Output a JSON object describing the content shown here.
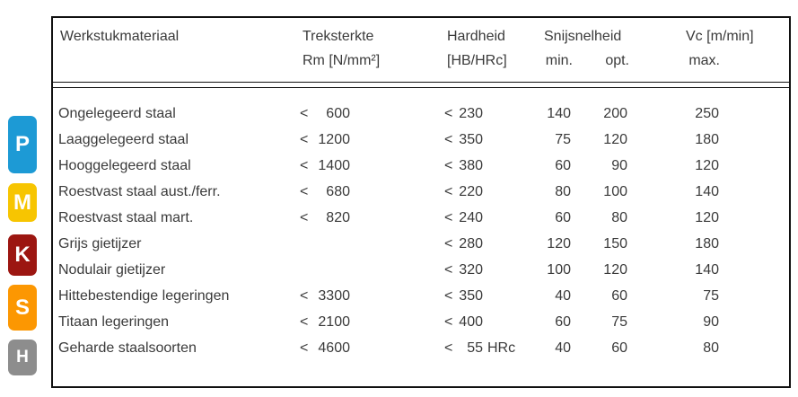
{
  "table": {
    "header": {
      "material": "Werkstukmateriaal",
      "tensile_line1": "Treksterkte",
      "tensile_line2": "Rm [N/mm²]",
      "hardness_line1": "Hardheid",
      "hardness_line2": "[HB/HRc]",
      "cutting_speed": "Snijsnelheid",
      "vc": "Vc [m/min]",
      "sub_min": "min.",
      "sub_opt": "opt.",
      "sub_max": "max."
    },
    "rows": [
      {
        "material": "Ongelegeerd staal",
        "rm_sign": "<",
        "rm": "600",
        "hard_sign": "<",
        "hard": "230",
        "hard_suffix": "",
        "vmin": "140",
        "vopt": "200",
        "vmax": "250"
      },
      {
        "material": "Laaggelegeerd staal",
        "rm_sign": "<",
        "rm": "1200",
        "hard_sign": "<",
        "hard": "350",
        "hard_suffix": "",
        "vmin": "75",
        "vopt": "120",
        "vmax": "180"
      },
      {
        "material": "Hooggelegeerd staal",
        "rm_sign": "<",
        "rm": "1400",
        "hard_sign": "<",
        "hard": "380",
        "hard_suffix": "",
        "vmin": "60",
        "vopt": "90",
        "vmax": "120"
      },
      {
        "material": "Roestvast staal aust./ferr.",
        "rm_sign": "<",
        "rm": "680",
        "hard_sign": "<",
        "hard": "220",
        "hard_suffix": "",
        "vmin": "80",
        "vopt": "100",
        "vmax": "140"
      },
      {
        "material": "Roestvast staal mart.",
        "rm_sign": "<",
        "rm": "820",
        "hard_sign": "<",
        "hard": "240",
        "hard_suffix": "",
        "vmin": "60",
        "vopt": "80",
        "vmax": "120"
      },
      {
        "material": "Grijs gietijzer",
        "rm_sign": "",
        "rm": "",
        "hard_sign": "<",
        "hard": "280",
        "hard_suffix": "",
        "vmin": "120",
        "vopt": "150",
        "vmax": "180"
      },
      {
        "material": "Nodulair gietijzer",
        "rm_sign": "",
        "rm": "",
        "hard_sign": "<",
        "hard": "320",
        "hard_suffix": "",
        "vmin": "100",
        "vopt": "120",
        "vmax": "140"
      },
      {
        "material": "Hittebestendige legeringen",
        "rm_sign": "<",
        "rm": "3300",
        "hard_sign": "<",
        "hard": "350",
        "hard_suffix": "",
        "vmin": "40",
        "vopt": "60",
        "vmax": "75"
      },
      {
        "material": "Titaan legeringen",
        "rm_sign": "<",
        "rm": "2100",
        "hard_sign": "<",
        "hard": "400",
        "hard_suffix": "",
        "vmin": "60",
        "vopt": "75",
        "vmax": "90"
      },
      {
        "material": "Geharde staalsoorten",
        "rm_sign": "<",
        "rm": "4600",
        "hard_sign": "<",
        "hard": "55",
        "hard_suffix": "HRc",
        "vmin": "40",
        "vopt": "60",
        "vmax": "80"
      }
    ]
  },
  "badges": [
    {
      "letter": "P",
      "color": "#1d9ad5"
    },
    {
      "letter": "M",
      "color": "#f7c501"
    },
    {
      "letter": "K",
      "color": "#9c1611"
    },
    {
      "letter": "S",
      "color": "#fc9702"
    },
    {
      "letter": "H",
      "color": "#8d8d8d"
    }
  ],
  "colors": {
    "text": "#3a3a3a",
    "border": "#111111",
    "background": "#ffffff"
  }
}
